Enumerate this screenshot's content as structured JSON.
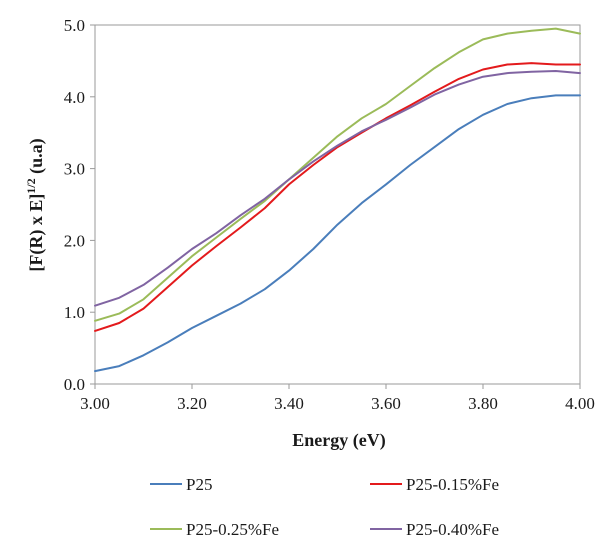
{
  "chart_data": {
    "type": "line",
    "xlabel": "Energy (eV)",
    "ylabel_main": "[F(R) x E]",
    "ylabel_sup": "1/2",
    "ylabel_tail": " (u.a)",
    "xlim": [
      3.0,
      4.0
    ],
    "ylim": [
      0.0,
      5.0
    ],
    "x_ticks": [
      "3.00",
      "3.20",
      "3.40",
      "3.60",
      "3.80",
      "4.00"
    ],
    "y_ticks": [
      "0.0",
      "1.0",
      "2.0",
      "3.0",
      "4.0",
      "5.0"
    ],
    "grid": false,
    "legend_position": "bottom",
    "series": [
      {
        "name": "P25",
        "color": "#4a7ebb",
        "x": [
          3.0,
          3.05,
          3.1,
          3.15,
          3.2,
          3.25,
          3.3,
          3.35,
          3.4,
          3.45,
          3.5,
          3.55,
          3.6,
          3.65,
          3.7,
          3.75,
          3.8,
          3.85,
          3.9,
          3.95,
          4.0
        ],
        "y": [
          0.18,
          0.25,
          0.4,
          0.58,
          0.78,
          0.95,
          1.12,
          1.32,
          1.58,
          1.88,
          2.22,
          2.52,
          2.78,
          3.05,
          3.3,
          3.55,
          3.75,
          3.9,
          3.98,
          4.02,
          4.02
        ]
      },
      {
        "name": "P25-0.15%Fe",
        "color": "#e31a1c",
        "x": [
          3.0,
          3.05,
          3.1,
          3.15,
          3.2,
          3.25,
          3.3,
          3.35,
          3.4,
          3.45,
          3.5,
          3.55,
          3.6,
          3.65,
          3.7,
          3.75,
          3.8,
          3.85,
          3.9,
          3.95,
          4.0
        ],
        "y": [
          0.74,
          0.85,
          1.05,
          1.35,
          1.65,
          1.92,
          2.18,
          2.45,
          2.78,
          3.05,
          3.3,
          3.5,
          3.7,
          3.88,
          4.07,
          4.25,
          4.38,
          4.45,
          4.47,
          4.45,
          4.45
        ]
      },
      {
        "name": "P25-0.25%Fe",
        "color": "#9bbb59",
        "x": [
          3.0,
          3.05,
          3.1,
          3.15,
          3.2,
          3.25,
          3.3,
          3.35,
          3.4,
          3.45,
          3.5,
          3.55,
          3.6,
          3.65,
          3.7,
          3.75,
          3.8,
          3.85,
          3.9,
          3.95,
          4.0
        ],
        "y": [
          0.88,
          0.98,
          1.18,
          1.48,
          1.78,
          2.04,
          2.3,
          2.55,
          2.85,
          3.15,
          3.45,
          3.7,
          3.9,
          4.15,
          4.4,
          4.62,
          4.8,
          4.88,
          4.92,
          4.95,
          4.88
        ]
      },
      {
        "name": "P25-0.40%Fe",
        "color": "#8064a2",
        "x": [
          3.0,
          3.05,
          3.1,
          3.15,
          3.2,
          3.25,
          3.3,
          3.35,
          3.4,
          3.45,
          3.5,
          3.55,
          3.6,
          3.65,
          3.7,
          3.75,
          3.8,
          3.85,
          3.9,
          3.95,
          4.0
        ],
        "y": [
          1.09,
          1.2,
          1.38,
          1.62,
          1.88,
          2.1,
          2.35,
          2.58,
          2.85,
          3.1,
          3.32,
          3.52,
          3.68,
          3.85,
          4.03,
          4.17,
          4.28,
          4.33,
          4.35,
          4.36,
          4.33
        ]
      }
    ]
  }
}
